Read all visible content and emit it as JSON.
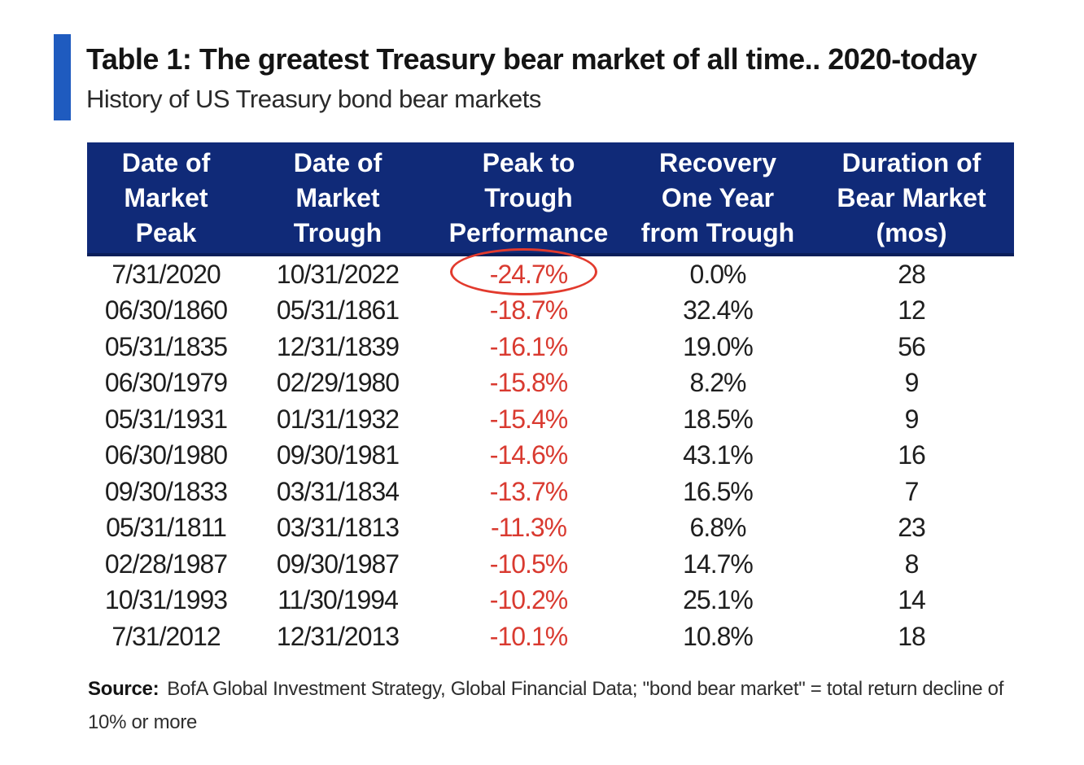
{
  "title": "Table 1: The greatest Treasury bear market of all time.. 2020-today",
  "subtitle": "History of US Treasury bond bear markets",
  "colors": {
    "accent_bar": "#1f5bbf",
    "header_bg": "#102a78",
    "negative_text": "#d93a30",
    "highlight": "#e23a2d"
  },
  "table": {
    "headers": [
      [
        "Date of",
        "Market",
        "Peak"
      ],
      [
        "Date of",
        "Market",
        "Trough"
      ],
      [
        "Peak to",
        "Trough",
        "Performance"
      ],
      [
        "Recovery",
        "One Year",
        "from Trough"
      ],
      [
        "Duration of",
        "Bear Market",
        "(mos)"
      ]
    ],
    "rows": [
      [
        "7/31/2020",
        "10/31/2022",
        "-24.7%",
        "0.0%",
        "28"
      ],
      [
        "06/30/1860",
        "05/31/1861",
        "-18.7%",
        "32.4%",
        "12"
      ],
      [
        "05/31/1835",
        "12/31/1839",
        "-16.1%",
        "19.0%",
        "56"
      ],
      [
        "06/30/1979",
        "02/29/1980",
        "-15.8%",
        "8.2%",
        "9"
      ],
      [
        "05/31/1931",
        "01/31/1932",
        "-15.4%",
        "18.5%",
        "9"
      ],
      [
        "06/30/1980",
        "09/30/1981",
        "-14.6%",
        "43.1%",
        "16"
      ],
      [
        "09/30/1833",
        "03/31/1834",
        "-13.7%",
        "16.5%",
        "7"
      ],
      [
        "05/31/1811",
        "03/31/1813",
        "-11.3%",
        "6.8%",
        "23"
      ],
      [
        "02/28/1987",
        "09/30/1987",
        "-10.5%",
        "14.7%",
        "8"
      ],
      [
        "10/31/1993",
        "11/30/1994",
        "-10.2%",
        "25.1%",
        "14"
      ],
      [
        "7/31/2012",
        "12/31/2013",
        "-10.1%",
        "10.8%",
        "18"
      ]
    ]
  },
  "source": {
    "label": "Source:",
    "text": "BofA Global Investment Strategy, Global Financial Data; \"bond bear market\" = total return decline of 10% or more"
  }
}
